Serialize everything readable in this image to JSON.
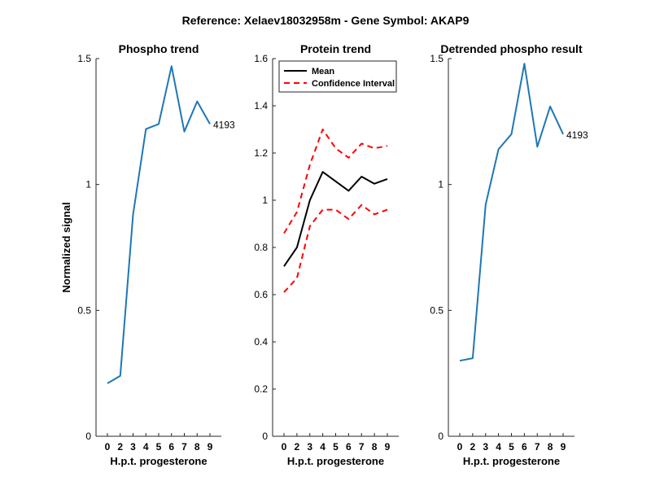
{
  "colors": {
    "blue": "#1f77b4",
    "black": "#000000",
    "red": "#ff0000"
  },
  "suptitle": "Reference:  Xelaev18032958m - Gene Symbol:  AKAP9",
  "chart_data": [
    {
      "type": "line",
      "title": "Phospho trend",
      "xlabel": "H.p.t. progesterone",
      "ylabel": "Normalized signal",
      "categories": [
        "0",
        "2",
        "3",
        "4",
        "5",
        "6",
        "7",
        "8",
        "9"
      ],
      "ylim": [
        0,
        1.5
      ],
      "yticks": [
        "0",
        "0.5",
        "1",
        "1.5"
      ],
      "series": [
        {
          "values": [
            0.21,
            0.24,
            0.88,
            1.22,
            1.24,
            1.47,
            1.21,
            1.33,
            1.24
          ],
          "color": "#1f77b4"
        }
      ],
      "annotation": "4193"
    },
    {
      "type": "line",
      "title": "Protein trend",
      "xlabel": "H.p.t. progesterone",
      "ylabel": "",
      "categories": [
        "0",
        "2",
        "3",
        "4",
        "5",
        "6",
        "7",
        "8",
        "9"
      ],
      "ylim": [
        0,
        1.6
      ],
      "yticks": [
        "0",
        "0.2",
        "0.4",
        "0.6",
        "0.8",
        "1",
        "1.2",
        "1.4",
        "1.6"
      ],
      "legend_position": "top-left",
      "series": [
        {
          "name": "Mean",
          "values": [
            0.72,
            0.8,
            1.0,
            1.12,
            1.08,
            1.04,
            1.1,
            1.07,
            1.09
          ],
          "color": "#000000",
          "style": "solid"
        },
        {
          "name": "Confidence Interval",
          "values": [
            0.86,
            0.95,
            1.15,
            1.3,
            1.22,
            1.18,
            1.24,
            1.22,
            1.23
          ],
          "color": "#ff0000",
          "style": "dashed"
        },
        {
          "values": [
            0.61,
            0.67,
            0.89,
            0.96,
            0.96,
            0.92,
            0.98,
            0.94,
            0.96
          ],
          "color": "#ff0000",
          "style": "dashed"
        }
      ]
    },
    {
      "type": "line",
      "title": "Detrended phospho result",
      "xlabel": "H.p.t. progesterone",
      "ylabel": "",
      "categories": [
        "0",
        "2",
        "3",
        "4",
        "5",
        "6",
        "7",
        "8",
        "9"
      ],
      "ylim": [
        0,
        1.5
      ],
      "yticks": [
        "0",
        "0.5",
        "1",
        "1.5"
      ],
      "series": [
        {
          "values": [
            0.3,
            0.31,
            0.92,
            1.14,
            1.2,
            1.48,
            1.15,
            1.31,
            1.2
          ],
          "color": "#1f77b4"
        }
      ],
      "annotation": "4193"
    }
  ]
}
